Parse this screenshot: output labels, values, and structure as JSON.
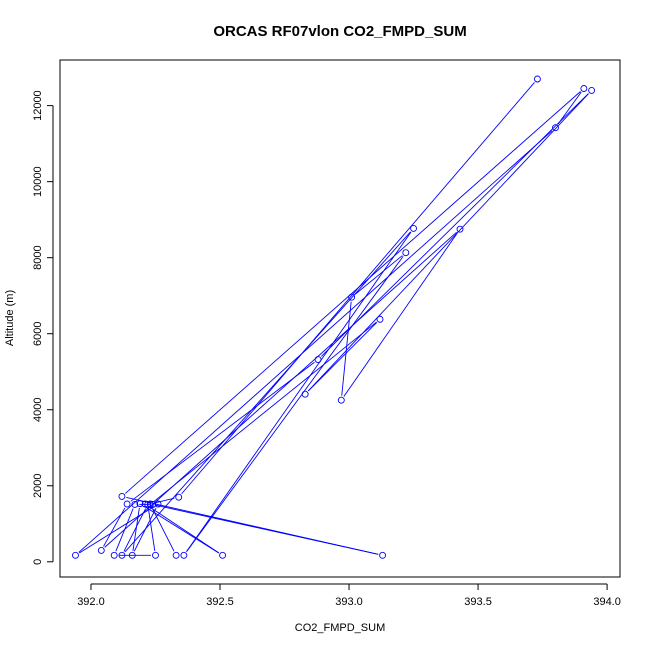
{
  "chart_data": {
    "type": "scatter",
    "title": "ORCAS RF07vlon CO2_FMPD_SUM",
    "xlabel": "CO2_FMPD_SUM",
    "ylabel": "Altitude (m)",
    "xlim": [
      391.88,
      394.05
    ],
    "ylim": [
      -400,
      13200
    ],
    "xticks": [
      "392.0",
      "392.5",
      "393.0",
      "393.5",
      "394.0"
    ],
    "yticks": [
      "0",
      "2000",
      "4000",
      "6000",
      "8000",
      "10000",
      "12000"
    ],
    "grid": false,
    "legend": "none",
    "series_color": "#0000ff",
    "series": [
      {
        "points": [
          {
            "x": 393.73,
            "y": 12700
          },
          {
            "x": 392.34,
            "y": 1700
          },
          {
            "x": 392.23,
            "y": 1520
          },
          {
            "x": 393.13,
            "y": 170
          },
          {
            "x": 392.12,
            "y": 1720
          },
          {
            "x": 393.91,
            "y": 12450
          },
          {
            "x": 393.8,
            "y": 11420
          },
          {
            "x": 391.94,
            "y": 170
          },
          {
            "x": 392.26,
            "y": 1520
          },
          {
            "x": 392.16,
            "y": 170
          },
          {
            "x": 392.19,
            "y": 1530
          },
          {
            "x": 392.51,
            "y": 170
          },
          {
            "x": 392.21,
            "y": 1520
          },
          {
            "x": 392.24,
            "y": 1510
          },
          {
            "x": 392.17,
            "y": 1510
          },
          {
            "x": 392.09,
            "y": 170
          },
          {
            "x": 392.25,
            "y": 170
          },
          {
            "x": 392.22,
            "y": 1510
          },
          {
            "x": 392.12,
            "y": 170
          },
          {
            "x": 393.25,
            "y": 8770
          },
          {
            "x": 392.36,
            "y": 170
          },
          {
            "x": 393.22,
            "y": 8130
          },
          {
            "x": 393.01,
            "y": 6960
          },
          {
            "x": 392.97,
            "y": 4250
          },
          {
            "x": 393.43,
            "y": 8750
          },
          {
            "x": 392.04,
            "y": 300
          },
          {
            "x": 392.14,
            "y": 1520
          },
          {
            "x": 392.88,
            "y": 5320
          },
          {
            "x": 393.94,
            "y": 12400
          },
          {
            "x": 392.83,
            "y": 4410
          },
          {
            "x": 393.12,
            "y": 6380
          },
          {
            "x": 392.23,
            "y": 1510
          },
          {
            "x": 392.33,
            "y": 170
          }
        ]
      }
    ]
  }
}
